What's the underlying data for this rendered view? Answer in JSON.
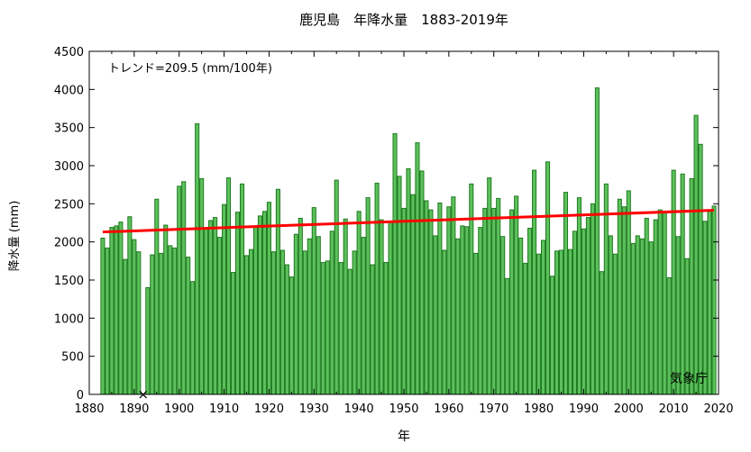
{
  "chart_data": {
    "type": "bar",
    "title": "鹿児島　年降水量　1883-2019年",
    "xlabel": "年",
    "ylabel": "降水量 (mm)",
    "xlim": [
      1880,
      2020
    ],
    "ylim": [
      0,
      4500
    ],
    "xticks": [
      1880,
      1890,
      1900,
      1910,
      1920,
      1930,
      1940,
      1950,
      1960,
      1970,
      1980,
      1990,
      2000,
      2010,
      2020
    ],
    "yticks": [
      0,
      500,
      1000,
      1500,
      2000,
      2500,
      3000,
      3500,
      4000,
      4500
    ],
    "grid": false,
    "bar_color": "#5cc15c",
    "bar_edge_color": "#1f7a1f",
    "trend_color": "#ff0000",
    "trend_label": "トレンド=209.5 (mm/100年)",
    "trend_line": {
      "x": [
        1883,
        2019
      ],
      "y": [
        2130,
        2415
      ]
    },
    "missing_years": [
      1892
    ],
    "missing_marker": "×",
    "source": "気象庁",
    "series": [
      {
        "x": [
          1883,
          1884,
          1885,
          1886,
          1887,
          1888,
          1889,
          1890,
          1891,
          1892,
          1893,
          1894,
          1895,
          1896,
          1897,
          1898,
          1899,
          1900,
          1901,
          1902,
          1903,
          1904,
          1905,
          1906,
          1907,
          1908,
          1909,
          1910,
          1911,
          1912,
          1913,
          1914,
          1915,
          1916,
          1917,
          1918,
          1919,
          1920,
          1921,
          1922,
          1923,
          1924,
          1925,
          1926,
          1927,
          1928,
          1929,
          1930,
          1931,
          1932,
          1933,
          1934,
          1935,
          1936,
          1937,
          1938,
          1939,
          1940,
          1941,
          1942,
          1943,
          1944,
          1945,
          1946,
          1947,
          1948,
          1949,
          1950,
          1951,
          1952,
          1953,
          1954,
          1955,
          1956,
          1957,
          1958,
          1959,
          1960,
          1961,
          1962,
          1963,
          1964,
          1965,
          1966,
          1967,
          1968,
          1969,
          1970,
          1971,
          1972,
          1973,
          1974,
          1975,
          1976,
          1977,
          1978,
          1979,
          1980,
          1981,
          1982,
          1983,
          1984,
          1985,
          1986,
          1987,
          1988,
          1989,
          1990,
          1991,
          1992,
          1993,
          1994,
          1995,
          1996,
          1997,
          1998,
          1999,
          2000,
          2001,
          2002,
          2003,
          2004,
          2005,
          2006,
          2007,
          2008,
          2009,
          2010,
          2011,
          2012,
          2013,
          2014,
          2015,
          2016,
          2017,
          2018,
          2019
        ],
        "values": [
          2050,
          1920,
          2190,
          2210,
          2260,
          1770,
          2330,
          2030,
          1870,
          0,
          1400,
          1830,
          2560,
          1850,
          2220,
          1950,
          1920,
          2730,
          2790,
          1800,
          1480,
          3550,
          2830,
          2180,
          2280,
          2320,
          2060,
          2490,
          2840,
          1600,
          2390,
          2760,
          1820,
          1900,
          2200,
          2340,
          2400,
          2520,
          1870,
          2690,
          1890,
          1700,
          1540,
          2100,
          2310,
          1880,
          2040,
          2450,
          2070,
          1730,
          1750,
          2140,
          2810,
          1730,
          2300,
          1640,
          1880,
          2400,
          2060,
          2580,
          1700,
          2770,
          2290,
          1730,
          2270,
          3420,
          2860,
          2440,
          2960,
          2620,
          3300,
          2930,
          2540,
          2420,
          2080,
          2510,
          1890,
          2460,
          2590,
          2040,
          2210,
          2200,
          2760,
          1850,
          2190,
          2440,
          2840,
          2440,
          2570,
          2070,
          1520,
          2420,
          2600,
          2050,
          1720,
          2180,
          2940,
          1840,
          2020,
          3050,
          1550,
          1880,
          1890,
          2650,
          1900,
          2140,
          2580,
          2170,
          2320,
          2500,
          4020,
          1610,
          2760,
          2080,
          1840,
          2560,
          2460,
          2670,
          1980,
          2080,
          2040,
          2310,
          2000,
          2290,
          2420,
          2390,
          1530,
          2940,
          2070,
          2890,
          1780,
          2830,
          3660,
          3280,
          2270,
          2410,
          2470
        ]
      }
    ]
  }
}
